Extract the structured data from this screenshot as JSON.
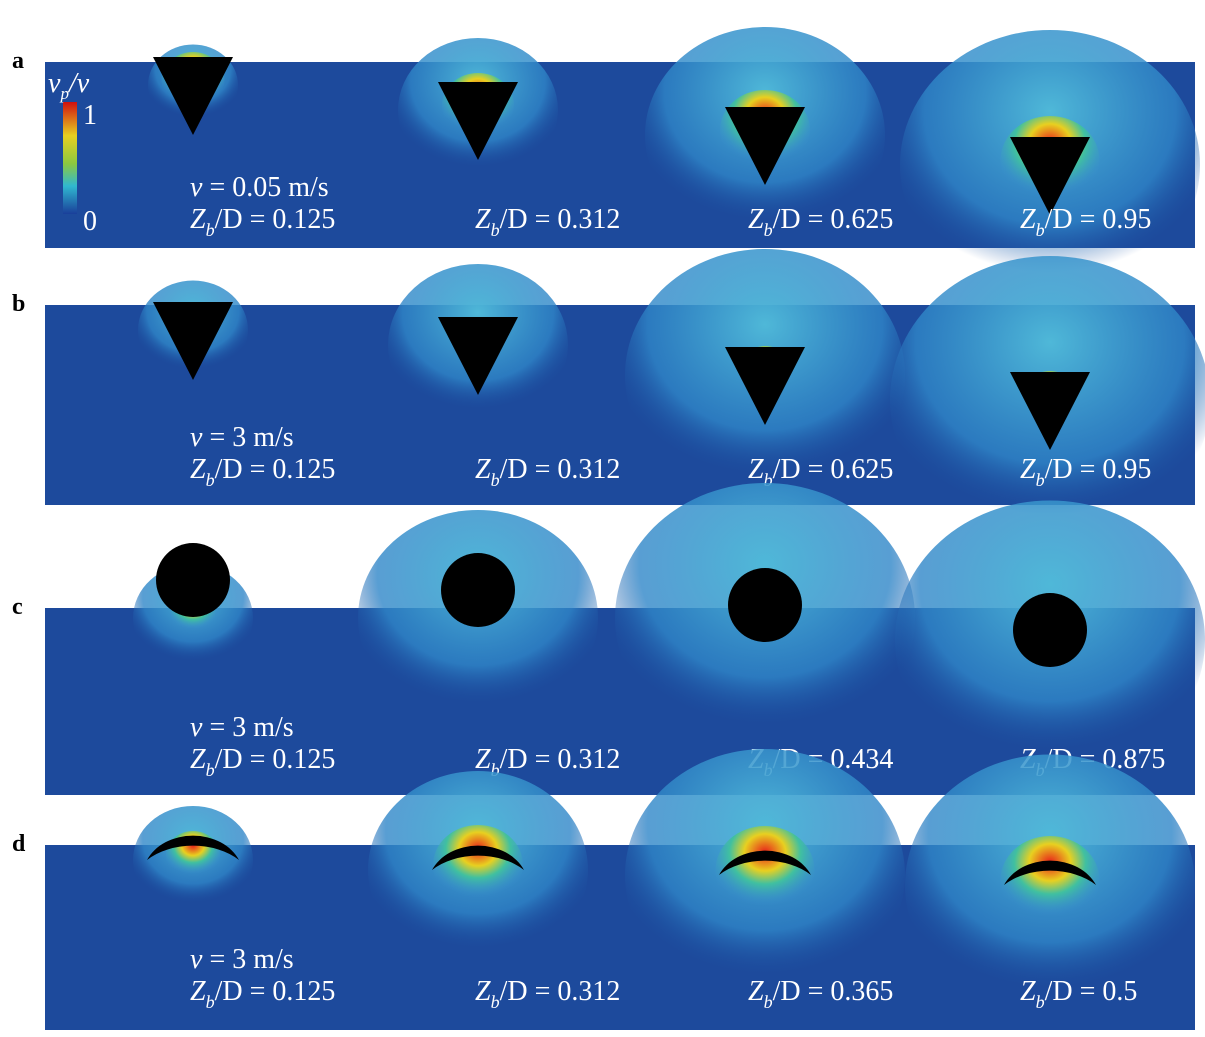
{
  "colorbar": {
    "label": {
      "main": "v",
      "sub": "p",
      "rest": "/v"
    },
    "max": "1",
    "min": "0"
  },
  "panels": [
    {
      "letter": "a",
      "velocity": {
        "var": "v",
        "rest": " = 0.05 m/s"
      },
      "frames": [
        {
          "main": "Z",
          "sub": "b",
          "rest": "/D = 0.125"
        },
        {
          "main": "Z",
          "sub": "b",
          "rest": "/D = 0.312"
        },
        {
          "main": "Z",
          "sub": "b",
          "rest": "/D = 0.625"
        },
        {
          "main": "Z",
          "sub": "b",
          "rest": "/D = 0.95"
        }
      ]
    },
    {
      "letter": "b",
      "velocity": {
        "var": "v",
        "rest": " = 3 m/s"
      },
      "frames": [
        {
          "main": "Z",
          "sub": "b",
          "rest": "/D = 0.125"
        },
        {
          "main": "Z",
          "sub": "b",
          "rest": "/D = 0.312"
        },
        {
          "main": "Z",
          "sub": "b",
          "rest": "/D = 0.625"
        },
        {
          "main": "Z",
          "sub": "b",
          "rest": "/D = 0.95"
        }
      ]
    },
    {
      "letter": "c",
      "velocity": {
        "var": "v",
        "rest": " = 3 m/s"
      },
      "frames": [
        {
          "main": "Z",
          "sub": "b",
          "rest": "/D = 0.125"
        },
        {
          "main": "Z",
          "sub": "b",
          "rest": "/D = 0.312"
        },
        {
          "main": "Z",
          "sub": "b",
          "rest": "/D = 0.434"
        },
        {
          "main": "Z",
          "sub": "b",
          "rest": "/D = 0.875"
        }
      ]
    },
    {
      "letter": "d",
      "velocity": {
        "var": "v",
        "rest": " = 3 m/s"
      },
      "frames": [
        {
          "main": "Z",
          "sub": "b",
          "rest": "/D = 0.125"
        },
        {
          "main": "Z",
          "sub": "b",
          "rest": "/D = 0.312"
        },
        {
          "main": "Z",
          "sub": "b",
          "rest": "/D = 0.365"
        },
        {
          "main": "Z",
          "sub": "b",
          "rest": "/D = 0.5"
        }
      ]
    }
  ]
}
